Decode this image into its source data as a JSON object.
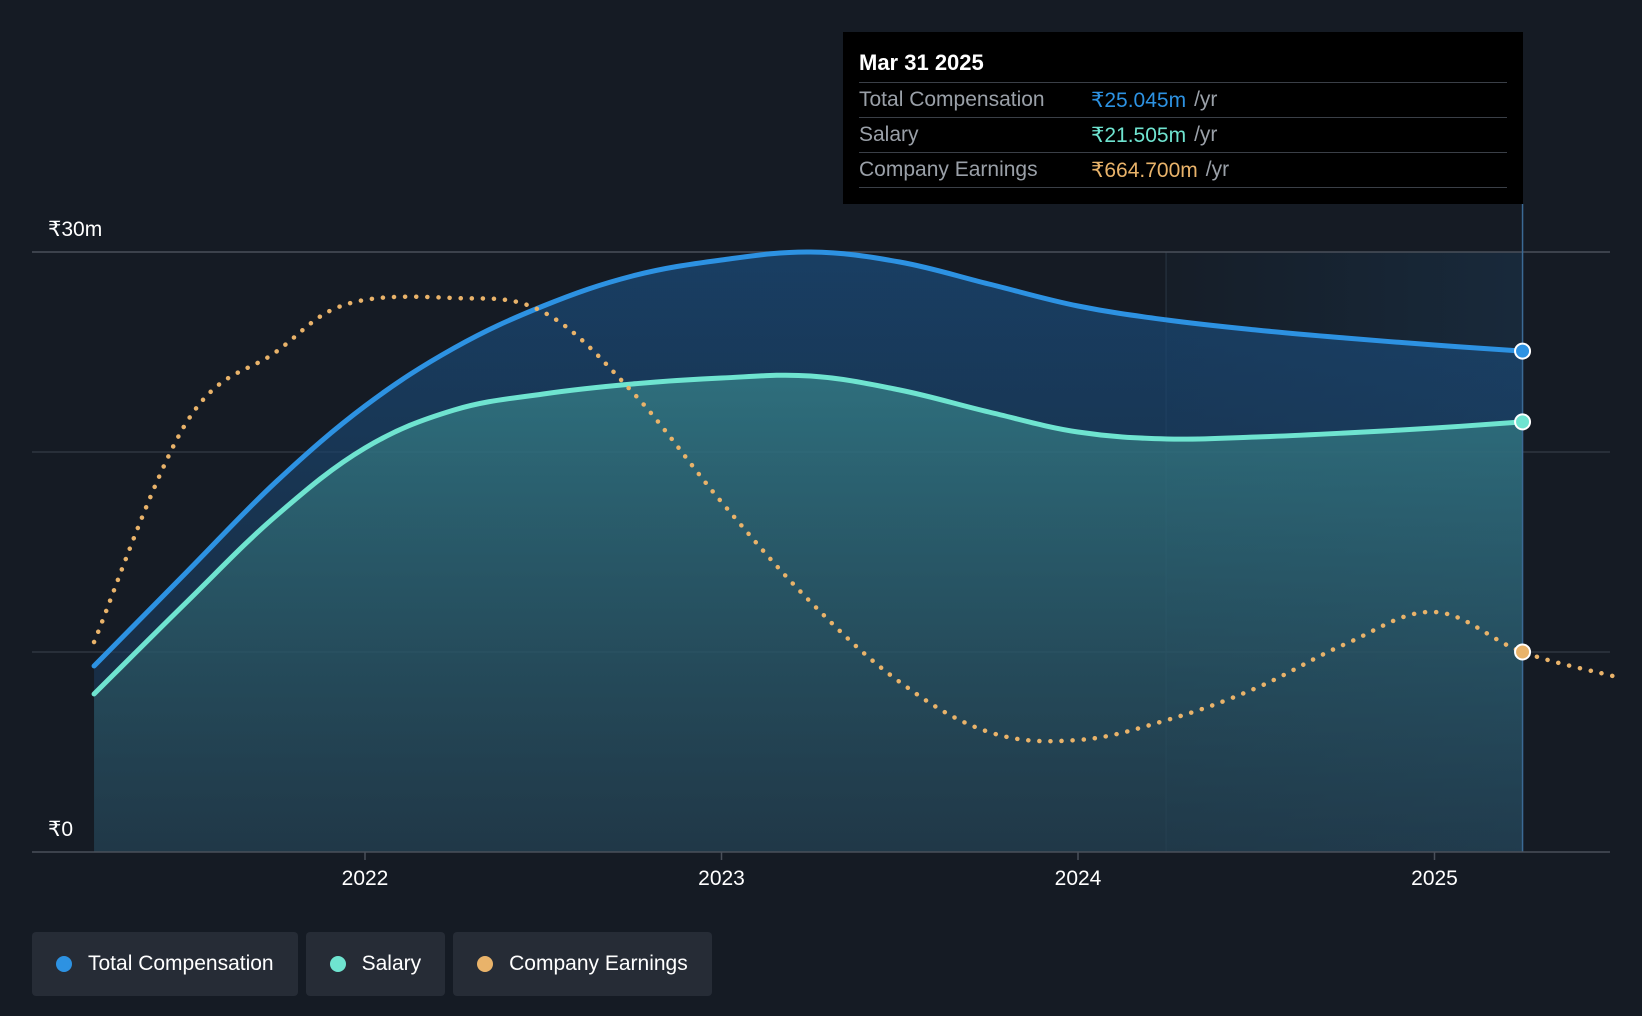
{
  "colors": {
    "background": "#151b24",
    "total_compensation": "#2d92e2",
    "salary": "#6fe4d0",
    "company_earnings": "#e9b36a",
    "grid": "#3a4049",
    "text": "#ffffff",
    "muted_text": "#9aa0a8"
  },
  "tooltip": {
    "date": "Mar 31 2025",
    "rows": [
      {
        "label": "Total Compensation",
        "value": "₹25.045m",
        "unit": "/yr"
      },
      {
        "label": "Salary",
        "value": "₹21.505m",
        "unit": "/yr"
      },
      {
        "label": "Company Earnings",
        "value": "₹664.700m",
        "unit": "/yr"
      }
    ]
  },
  "legend": [
    {
      "label": "Total Compensation",
      "color": "#2d92e2"
    },
    {
      "label": "Salary",
      "color": "#6fe4d0"
    },
    {
      "label": "Company Earnings",
      "color": "#e9b36a"
    }
  ],
  "chart_data": {
    "type": "area",
    "title": "",
    "xlabel": "",
    "ylabel": "",
    "ylim": [
      0,
      30
    ],
    "y_ticks": [
      {
        "value": 30,
        "label": "₹30m"
      },
      {
        "value": 0,
        "label": "₹0"
      }
    ],
    "x_ticks": [
      {
        "value": 2022.0,
        "label": "2022"
      },
      {
        "value": 2023.0,
        "label": "2023"
      },
      {
        "value": 2024.0,
        "label": "2024"
      },
      {
        "value": 2025.0,
        "label": "2025"
      }
    ],
    "xlim": [
      2021.2,
      2025.5
    ],
    "highlight_date": 2025.247,
    "series": [
      {
        "name": "Total Compensation",
        "kind": "area-line",
        "color": "#2d92e2",
        "points": [
          [
            2021.24,
            9.3
          ],
          [
            2021.5,
            14.0
          ],
          [
            2021.75,
            18.5
          ],
          [
            2022.0,
            22.3
          ],
          [
            2022.25,
            25.2
          ],
          [
            2022.5,
            27.3
          ],
          [
            2022.75,
            28.8
          ],
          [
            2023.0,
            29.6
          ],
          [
            2023.25,
            30.0
          ],
          [
            2023.5,
            29.5
          ],
          [
            2023.75,
            28.4
          ],
          [
            2024.0,
            27.3
          ],
          [
            2024.25,
            26.6
          ],
          [
            2024.5,
            26.1
          ],
          [
            2024.75,
            25.7
          ],
          [
            2025.0,
            25.35
          ],
          [
            2025.247,
            25.045
          ]
        ]
      },
      {
        "name": "Salary",
        "kind": "area-line",
        "color": "#6fe4d0",
        "points": [
          [
            2021.24,
            7.9
          ],
          [
            2021.5,
            12.5
          ],
          [
            2021.75,
            16.8
          ],
          [
            2022.0,
            20.2
          ],
          [
            2022.25,
            22.1
          ],
          [
            2022.5,
            22.9
          ],
          [
            2022.75,
            23.4
          ],
          [
            2023.0,
            23.7
          ],
          [
            2023.25,
            23.8
          ],
          [
            2023.5,
            23.1
          ],
          [
            2023.75,
            22.0
          ],
          [
            2024.0,
            21.0
          ],
          [
            2024.25,
            20.65
          ],
          [
            2024.5,
            20.75
          ],
          [
            2024.75,
            20.95
          ],
          [
            2025.0,
            21.2
          ],
          [
            2025.247,
            21.505
          ]
        ]
      },
      {
        "name": "Company Earnings",
        "kind": "dotted-line",
        "color": "#e9b36a",
        "points": [
          [
            2021.24,
            10.5
          ],
          [
            2021.5,
            21.5
          ],
          [
            2021.75,
            25.0
          ],
          [
            2021.95,
            27.4
          ],
          [
            2022.25,
            27.7
          ],
          [
            2022.5,
            27.0
          ],
          [
            2022.75,
            23.0
          ],
          [
            2023.0,
            17.5
          ],
          [
            2023.25,
            12.5
          ],
          [
            2023.5,
            8.5
          ],
          [
            2023.75,
            6.0
          ],
          [
            2024.0,
            5.6
          ],
          [
            2024.25,
            6.6
          ],
          [
            2024.5,
            8.2
          ],
          [
            2024.75,
            10.4
          ],
          [
            2025.0,
            12.0
          ],
          [
            2025.247,
            10.0
          ],
          [
            2025.5,
            8.8
          ]
        ]
      }
    ]
  }
}
